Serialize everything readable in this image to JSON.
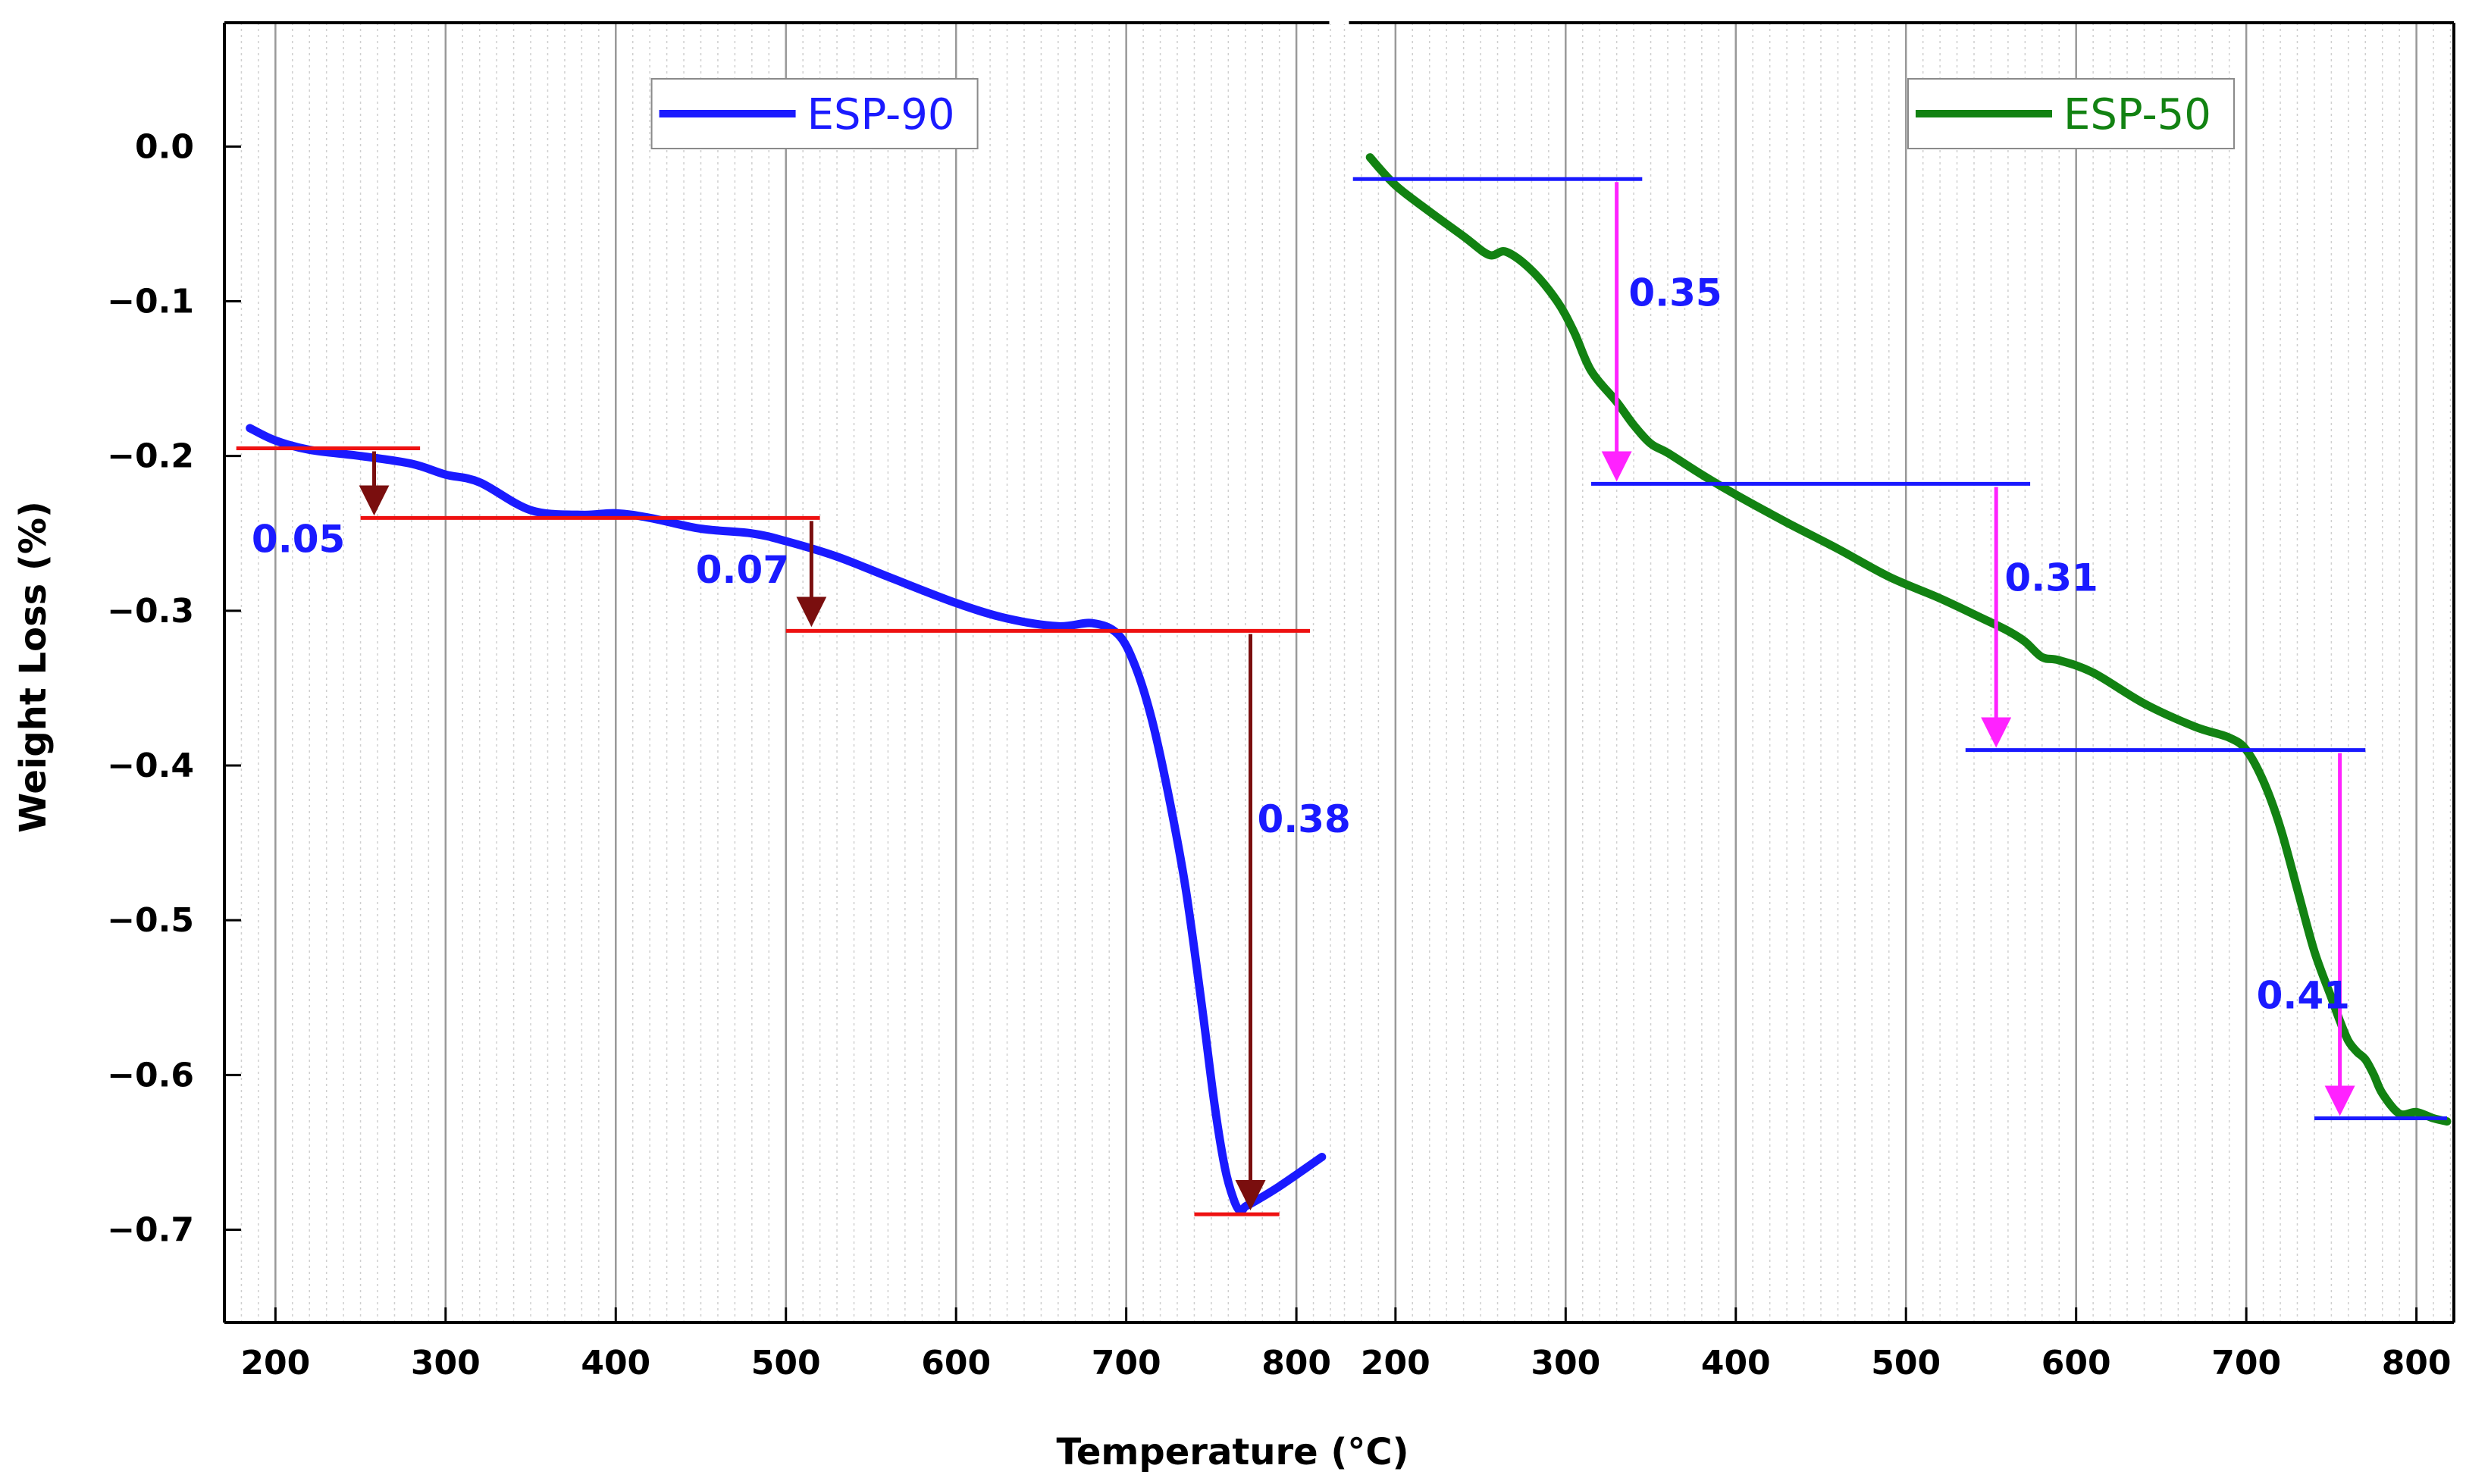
{
  "chart_data": {
    "type": "line",
    "xlabel": "Temperature (°C)",
    "ylabel": "Weight Loss (%)",
    "ylim": [
      -0.76,
      0.08
    ],
    "yticks": [
      "0.0",
      "-0.1",
      "-0.2",
      "-0.3",
      "-0.4",
      "-0.5",
      "-0.6",
      "-0.7"
    ],
    "colors": {
      "esp90": "#1a1aff",
      "esp50": "#128212",
      "red_step": "#ee1111",
      "dark_arrow": "#7a0e0e",
      "magenta": "#ff22ff",
      "blue_step": "#1a1aff",
      "label_blue": "#1a1aff",
      "grid": "#999999"
    },
    "panels": [
      {
        "id": "left",
        "xlim": [
          170,
          822
        ],
        "xticks": [
          "200",
          "300",
          "400",
          "500",
          "600",
          "700",
          "800"
        ],
        "series": [
          {
            "name": "ESP-90",
            "color": "#1a1aff",
            "x": [
              185,
              200,
              220,
              250,
              280,
              300,
              320,
              350,
              380,
              400,
              420,
              450,
              480,
              500,
              530,
              560,
              600,
              630,
              660,
              680,
              695,
              705,
              715,
              725,
              735,
              745,
              752,
              758,
              763,
              767,
              770,
              775,
              790,
              815
            ],
            "y": [
              -0.182,
              -0.19,
              -0.196,
              -0.2,
              -0.205,
              -0.212,
              -0.217,
              -0.235,
              -0.238,
              -0.237,
              -0.24,
              -0.247,
              -0.25,
              -0.255,
              -0.265,
              -0.278,
              -0.295,
              -0.305,
              -0.31,
              -0.308,
              -0.315,
              -0.335,
              -0.37,
              -0.42,
              -0.48,
              -0.56,
              -0.62,
              -0.66,
              -0.68,
              -0.688,
              -0.685,
              -0.682,
              -0.672,
              -0.653
            ]
          }
        ],
        "levels": [
          {
            "y": -0.195,
            "x1": 177,
            "x2": 285,
            "color": "#ee1111"
          },
          {
            "y": -0.24,
            "x1": 250,
            "x2": 520,
            "color": "#ee1111"
          },
          {
            "y": -0.313,
            "x1": 500,
            "x2": 808,
            "color": "#ee1111"
          },
          {
            "y": -0.69,
            "x1": 740,
            "x2": 790,
            "color": "#ee1111"
          }
        ],
        "arrows": [
          {
            "x": 258,
            "y1": -0.197,
            "y2": -0.238,
            "color": "#7a0e0e"
          },
          {
            "x": 515,
            "y1": -0.242,
            "y2": -0.31,
            "color": "#7a0e0e"
          },
          {
            "x": 773,
            "y1": -0.315,
            "y2": -0.687,
            "color": "#7a0e0e"
          }
        ],
        "annotations": [
          {
            "text": "0.05",
            "x": 186,
            "y": -0.262,
            "color": "#1a1aff"
          },
          {
            "text": "0.07",
            "x": 447,
            "y": -0.282,
            "color": "#1a1aff"
          },
          {
            "text": "0.38",
            "x": 777,
            "y": -0.443,
            "color": "#1a1aff"
          }
        ],
        "legend": {
          "label": "ESP-90",
          "position": "top-center"
        }
      },
      {
        "id": "right",
        "xlim": [
          170,
          822
        ],
        "xticks": [
          "200",
          "300",
          "400",
          "500",
          "600",
          "700",
          "800"
        ],
        "series": [
          {
            "name": "ESP-50",
            "color": "#128212",
            "x": [
              185,
              200,
              220,
              240,
              255,
              265,
              280,
              295,
              305,
              315,
              330,
              340,
              350,
              360,
              380,
              400,
              430,
              460,
              490,
              520,
              545,
              560,
              570,
              580,
              590,
              610,
              640,
              670,
              690,
              700,
              710,
              720,
              730,
              740,
              750,
              755,
              760,
              765,
              770,
              775,
              780,
              790,
              800,
              810,
              818
            ],
            "y": [
              -0.007,
              -0.025,
              -0.042,
              -0.058,
              -0.07,
              -0.068,
              -0.08,
              -0.1,
              -0.12,
              -0.145,
              -0.165,
              -0.18,
              -0.192,
              -0.198,
              -0.212,
              -0.225,
              -0.243,
              -0.26,
              -0.278,
              -0.292,
              -0.305,
              -0.313,
              -0.32,
              -0.33,
              -0.332,
              -0.34,
              -0.36,
              -0.375,
              -0.382,
              -0.39,
              -0.41,
              -0.44,
              -0.48,
              -0.52,
              -0.55,
              -0.565,
              -0.578,
              -0.585,
              -0.59,
              -0.6,
              -0.612,
              -0.625,
              -0.624,
              -0.628,
              -0.63
            ]
          }
        ],
        "levels": [
          {
            "y": -0.021,
            "x1": 175,
            "x2": 345,
            "color": "#1a1aff"
          },
          {
            "y": -0.218,
            "x1": 315,
            "x2": 573,
            "color": "#1a1aff"
          },
          {
            "y": -0.39,
            "x1": 535,
            "x2": 770,
            "color": "#1a1aff"
          },
          {
            "y": -0.628,
            "x1": 740,
            "x2": 818,
            "color": "#1a1aff"
          }
        ],
        "arrows": [
          {
            "x": 330,
            "y1": -0.023,
            "y2": -0.216,
            "color": "#ff22ff"
          },
          {
            "x": 553,
            "y1": -0.22,
            "y2": -0.388,
            "color": "#ff22ff"
          },
          {
            "x": 755,
            "y1": -0.392,
            "y2": -0.626,
            "color": "#ff22ff"
          }
        ],
        "annotations": [
          {
            "text": "0.35",
            "x": 337,
            "y": -0.103,
            "color": "#1a1aff"
          },
          {
            "text": "0.31",
            "x": 558,
            "y": -0.287,
            "color": "#1a1aff"
          },
          {
            "text": "0.41",
            "x": 706,
            "y": -0.557,
            "color": "#1a1aff"
          }
        ],
        "legend": {
          "label": "ESP-50",
          "position": "top-right"
        }
      }
    ]
  }
}
